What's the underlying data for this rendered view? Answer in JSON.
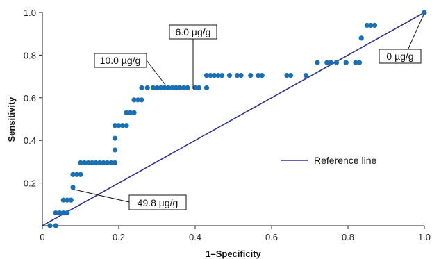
{
  "chart_data": {
    "type": "scatter",
    "xlabel": "1–Specificity",
    "ylabel": "Sensitivity",
    "xlim": [
      0,
      1.0
    ],
    "ylim": [
      0,
      1.0
    ],
    "x_ticks": [
      "0",
      "0.2",
      "0.4",
      "0.6",
      "0.8",
      "1.0"
    ],
    "y_ticks": [
      "0.2",
      "0.4",
      "0.6",
      "0.8",
      "1.0"
    ],
    "x_tick_values": [
      0,
      0.2,
      0.4,
      0.6,
      0.8,
      1.0
    ],
    "y_tick_values": [
      0.2,
      0.4,
      0.6,
      0.8,
      1.0
    ],
    "grid": false,
    "legend": {
      "position": "center-right",
      "label": "Reference line"
    },
    "reference_line": {
      "from": [
        0,
        0
      ],
      "to": [
        1.0,
        1.0
      ],
      "color": "#2e3192"
    },
    "point_color": "#1a6fb4",
    "points": [
      {
        "x": 0.02,
        "y": 0.0
      },
      {
        "x": 0.035,
        "y": 0.0
      },
      {
        "x": 0.035,
        "y": 0.06
      },
      {
        "x": 0.045,
        "y": 0.06
      },
      {
        "x": 0.055,
        "y": 0.06
      },
      {
        "x": 0.065,
        "y": 0.06
      },
      {
        "x": 0.055,
        "y": 0.12
      },
      {
        "x": 0.065,
        "y": 0.12
      },
      {
        "x": 0.075,
        "y": 0.12
      },
      {
        "x": 0.08,
        "y": 0.18
      },
      {
        "x": 0.08,
        "y": 0.24
      },
      {
        "x": 0.09,
        "y": 0.24
      },
      {
        "x": 0.1,
        "y": 0.24
      },
      {
        "x": 0.1,
        "y": 0.295
      },
      {
        "x": 0.11,
        "y": 0.295
      },
      {
        "x": 0.12,
        "y": 0.295
      },
      {
        "x": 0.13,
        "y": 0.295
      },
      {
        "x": 0.14,
        "y": 0.295
      },
      {
        "x": 0.15,
        "y": 0.295
      },
      {
        "x": 0.16,
        "y": 0.295
      },
      {
        "x": 0.17,
        "y": 0.295
      },
      {
        "x": 0.18,
        "y": 0.295
      },
      {
        "x": 0.19,
        "y": 0.295
      },
      {
        "x": 0.19,
        "y": 0.355
      },
      {
        "x": 0.19,
        "y": 0.41
      },
      {
        "x": 0.19,
        "y": 0.47
      },
      {
        "x": 0.2,
        "y": 0.47
      },
      {
        "x": 0.21,
        "y": 0.47
      },
      {
        "x": 0.22,
        "y": 0.47
      },
      {
        "x": 0.22,
        "y": 0.53
      },
      {
        "x": 0.23,
        "y": 0.53
      },
      {
        "x": 0.24,
        "y": 0.53
      },
      {
        "x": 0.24,
        "y": 0.59
      },
      {
        "x": 0.25,
        "y": 0.59
      },
      {
        "x": 0.26,
        "y": 0.59
      },
      {
        "x": 0.26,
        "y": 0.647
      },
      {
        "x": 0.275,
        "y": 0.647
      },
      {
        "x": 0.29,
        "y": 0.647
      },
      {
        "x": 0.3,
        "y": 0.647
      },
      {
        "x": 0.31,
        "y": 0.647
      },
      {
        "x": 0.32,
        "y": 0.647
      },
      {
        "x": 0.33,
        "y": 0.647
      },
      {
        "x": 0.34,
        "y": 0.647
      },
      {
        "x": 0.35,
        "y": 0.647
      },
      {
        "x": 0.36,
        "y": 0.647
      },
      {
        "x": 0.37,
        "y": 0.647
      },
      {
        "x": 0.38,
        "y": 0.647
      },
      {
        "x": 0.4,
        "y": 0.647
      },
      {
        "x": 0.41,
        "y": 0.647
      },
      {
        "x": 0.43,
        "y": 0.647
      },
      {
        "x": 0.43,
        "y": 0.705
      },
      {
        "x": 0.44,
        "y": 0.705
      },
      {
        "x": 0.45,
        "y": 0.705
      },
      {
        "x": 0.46,
        "y": 0.705
      },
      {
        "x": 0.47,
        "y": 0.705
      },
      {
        "x": 0.49,
        "y": 0.705
      },
      {
        "x": 0.51,
        "y": 0.705
      },
      {
        "x": 0.52,
        "y": 0.705
      },
      {
        "x": 0.545,
        "y": 0.705
      },
      {
        "x": 0.565,
        "y": 0.705
      },
      {
        "x": 0.575,
        "y": 0.705
      },
      {
        "x": 0.64,
        "y": 0.705
      },
      {
        "x": 0.65,
        "y": 0.705
      },
      {
        "x": 0.69,
        "y": 0.705
      },
      {
        "x": 0.72,
        "y": 0.765
      },
      {
        "x": 0.745,
        "y": 0.765
      },
      {
        "x": 0.755,
        "y": 0.765
      },
      {
        "x": 0.77,
        "y": 0.765
      },
      {
        "x": 0.795,
        "y": 0.765
      },
      {
        "x": 0.82,
        "y": 0.765
      },
      {
        "x": 0.83,
        "y": 0.765
      },
      {
        "x": 0.835,
        "y": 0.88
      },
      {
        "x": 0.85,
        "y": 0.94
      },
      {
        "x": 0.86,
        "y": 0.94
      },
      {
        "x": 0.87,
        "y": 0.94
      },
      {
        "x": 1.0,
        "y": 1.0
      }
    ],
    "annotations": [
      {
        "text": "6.0 µg/g",
        "target": [
          0.4,
          0.647
        ]
      },
      {
        "text": "10.0 µg/g",
        "target": [
          0.32,
          0.647
        ]
      },
      {
        "text": "0 µg/g",
        "target": [
          1.0,
          1.0
        ]
      },
      {
        "text": "49.8 µg/g",
        "target": [
          0.08,
          0.18
        ]
      }
    ]
  }
}
